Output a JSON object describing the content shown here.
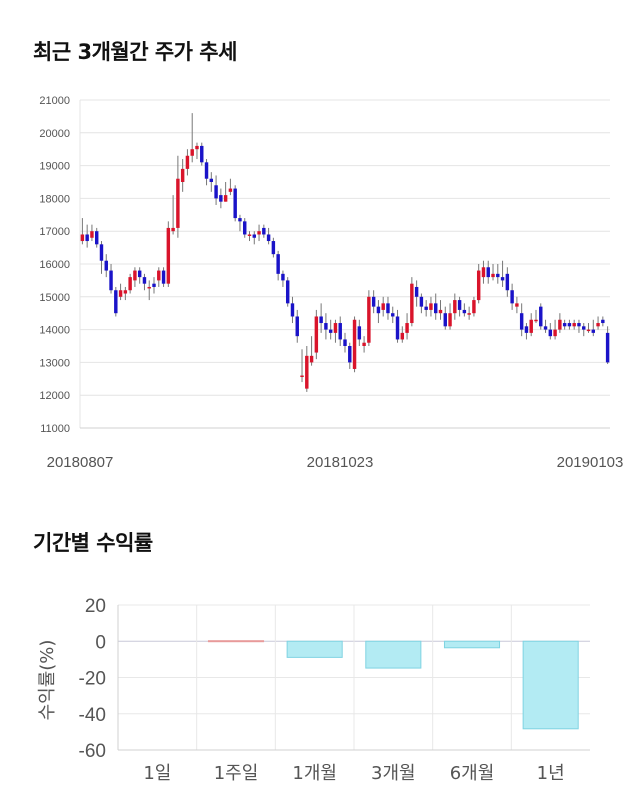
{
  "headings": {
    "price_trend": "최근 3개월간 주가 추세",
    "period_return": "기간별 수익률"
  },
  "colors": {
    "up": "#d9142b",
    "down": "#1a13c8",
    "wick": "#777777",
    "return_bar": "#b3ebf3",
    "return_bar_edge": "#7fd3e2"
  },
  "chart_data": [
    {
      "type": "candlestick",
      "ylim": [
        11000,
        21000
      ],
      "yticks": [
        11000,
        12000,
        13000,
        14000,
        15000,
        16000,
        17000,
        18000,
        19000,
        20000,
        21000
      ],
      "date_labels": [
        "20180807",
        "20181023",
        "20190103"
      ],
      "grid": true,
      "candles": [
        [
          16700,
          16900,
          17400,
          16600
        ],
        [
          16900,
          16700,
          17200,
          16500
        ],
        [
          16800,
          17000,
          17200,
          16700
        ],
        [
          17000,
          16600,
          17100,
          16500
        ],
        [
          16600,
          16100,
          16700,
          15700
        ],
        [
          16100,
          15800,
          16300,
          15600
        ],
        [
          15800,
          15200,
          16000,
          15100
        ],
        [
          15200,
          14500,
          15300,
          14400
        ],
        [
          15000,
          15200,
          15400,
          14900
        ],
        [
          15100,
          15200,
          15300,
          14900
        ],
        [
          15200,
          15600,
          15700,
          15100
        ],
        [
          15500,
          15800,
          15900,
          15300
        ],
        [
          15800,
          15600,
          15900,
          15400
        ],
        [
          15600,
          15400,
          15700,
          15200
        ],
        [
          15300,
          15300,
          15500,
          14900
        ],
        [
          15400,
          15300,
          15600,
          15100
        ],
        [
          15500,
          15800,
          15900,
          15300
        ],
        [
          15800,
          15400,
          15900,
          15300
        ],
        [
          15400,
          17100,
          17300,
          15300
        ],
        [
          17000,
          17100,
          18100,
          16900
        ],
        [
          17100,
          18600,
          19300,
          16800
        ],
        [
          18500,
          18900,
          19200,
          18200
        ],
        [
          18900,
          19300,
          19500,
          18700
        ],
        [
          19300,
          19500,
          20600,
          19100
        ],
        [
          19500,
          19600,
          19700,
          19200
        ],
        [
          19600,
          19100,
          19700,
          19000
        ],
        [
          19100,
          18600,
          19200,
          18400
        ],
        [
          18600,
          18500,
          18800,
          18200
        ],
        [
          18400,
          18000,
          18700,
          17800
        ],
        [
          18100,
          17900,
          18300,
          17700
        ],
        [
          17900,
          18100,
          18500,
          17900
        ],
        [
          18200,
          18300,
          18600,
          18100
        ],
        [
          18300,
          17400,
          18400,
          17300
        ],
        [
          17400,
          17300,
          17500,
          17000
        ],
        [
          17300,
          16900,
          17400,
          16800
        ],
        [
          16900,
          16900,
          17000,
          16700
        ],
        [
          16900,
          16800,
          17000,
          16600
        ],
        [
          16900,
          17000,
          17200,
          16700
        ],
        [
          17100,
          16900,
          17200,
          16800
        ],
        [
          16900,
          16700,
          17100,
          16600
        ],
        [
          16700,
          16300,
          16800,
          16200
        ],
        [
          16300,
          15700,
          16400,
          15500
        ],
        [
          15700,
          15500,
          15800,
          15300
        ],
        [
          15500,
          14800,
          15600,
          14700
        ],
        [
          14800,
          14400,
          15000,
          14200
        ],
        [
          14400,
          13800,
          14600,
          13600
        ],
        [
          12600,
          12600,
          13400,
          12400
        ],
        [
          12200,
          13200,
          13500,
          12100
        ],
        [
          13000,
          13200,
          13800,
          12900
        ],
        [
          13300,
          14400,
          14600,
          13100
        ],
        [
          14400,
          14200,
          14800,
          13900
        ],
        [
          14200,
          14000,
          14500,
          13700
        ],
        [
          14000,
          13900,
          14300,
          13700
        ],
        [
          13900,
          14200,
          14300,
          13600
        ],
        [
          14200,
          13700,
          14400,
          13500
        ],
        [
          13700,
          13500,
          13900,
          13300
        ],
        [
          13500,
          13000,
          13600,
          12800
        ],
        [
          12800,
          14300,
          14400,
          12700
        ],
        [
          14100,
          13700,
          14300,
          13500
        ],
        [
          13500,
          13600,
          13800,
          13300
        ],
        [
          13600,
          15000,
          15200,
          13500
        ],
        [
          15000,
          14700,
          15200,
          14500
        ],
        [
          14700,
          14500,
          14900,
          14200
        ],
        [
          14600,
          14800,
          15000,
          14400
        ],
        [
          14800,
          14500,
          15000,
          14300
        ],
        [
          14500,
          14400,
          14700,
          14200
        ],
        [
          14400,
          13700,
          14600,
          13600
        ],
        [
          13700,
          13900,
          14100,
          13600
        ],
        [
          13900,
          14200,
          14500,
          13700
        ],
        [
          14200,
          15400,
          15600,
          14100
        ],
        [
          15300,
          15000,
          15500,
          14700
        ],
        [
          15000,
          14700,
          15100,
          14500
        ],
        [
          14700,
          14600,
          14900,
          14400
        ],
        [
          14600,
          14800,
          15000,
          14400
        ],
        [
          14800,
          14500,
          15100,
          14300
        ],
        [
          14500,
          14600,
          14900,
          14300
        ],
        [
          14500,
          14100,
          14700,
          14000
        ],
        [
          14100,
          14500,
          14800,
          14000
        ],
        [
          14500,
          14900,
          15100,
          14300
        ],
        [
          14900,
          14600,
          15000,
          14400
        ],
        [
          14600,
          14500,
          14800,
          14400
        ],
        [
          14500,
          14500,
          14700,
          14300
        ],
        [
          14500,
          14900,
          15000,
          14400
        ],
        [
          14900,
          15800,
          16000,
          14800
        ],
        [
          15600,
          15900,
          16100,
          15400
        ],
        [
          15900,
          15600,
          16100,
          15400
        ],
        [
          15600,
          15700,
          16000,
          15500
        ],
        [
          15700,
          15600,
          16000,
          15400
        ],
        [
          15600,
          15500,
          16100,
          15300
        ],
        [
          15700,
          15200,
          15900,
          15000
        ],
        [
          15200,
          14800,
          15400,
          14600
        ],
        [
          14700,
          14800,
          15000,
          14500
        ],
        [
          14500,
          14000,
          14800,
          13800
        ],
        [
          14100,
          13900,
          14200,
          13700
        ],
        [
          13900,
          14300,
          14500,
          13800
        ],
        [
          14300,
          14300,
          14600,
          14200
        ],
        [
          14700,
          14100,
          14800,
          14000
        ],
        [
          14100,
          14000,
          14300,
          13900
        ],
        [
          14000,
          13800,
          14200,
          13700
        ],
        [
          13800,
          14000,
          14300,
          13700
        ],
        [
          14000,
          14300,
          14500,
          13900
        ],
        [
          14200,
          14100,
          14300,
          14000
        ],
        [
          14200,
          14100,
          14300,
          14000
        ],
        [
          14100,
          14200,
          14300,
          14000
        ],
        [
          14200,
          14100,
          14300,
          13900
        ],
        [
          14100,
          14000,
          14200,
          13800
        ],
        [
          14000,
          14000,
          14200,
          13900
        ],
        [
          14000,
          13900,
          14300,
          13800
        ],
        [
          14100,
          14200,
          14400,
          14000
        ],
        [
          14300,
          14200,
          14400,
          14100
        ],
        [
          13900,
          13000,
          14100,
          12950
        ]
      ]
    },
    {
      "type": "bar",
      "categories": [
        "1일",
        "1주일",
        "1개월",
        "3개월",
        "6개월",
        "1년"
      ],
      "values": [
        0,
        0.3,
        -8.9,
        -14.8,
        -3.6,
        -48.3
      ],
      "ylabel": "수익률(%)",
      "ylim": [
        -60,
        20
      ],
      "yticks": [
        20,
        0,
        -20,
        -40,
        -60
      ],
      "grid": true
    }
  ]
}
